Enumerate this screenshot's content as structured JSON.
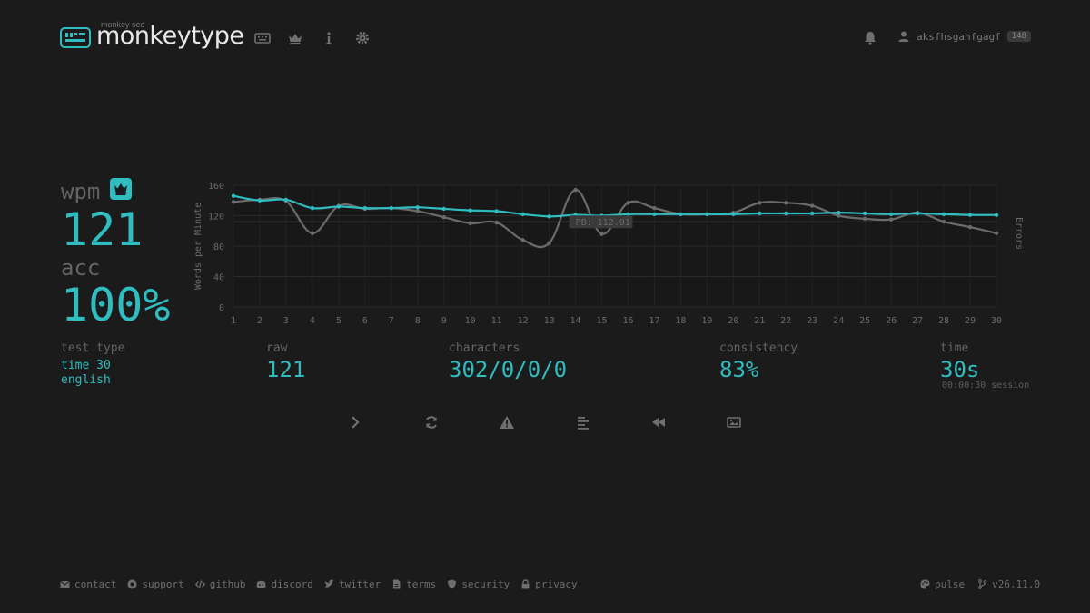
{
  "header": {
    "logo_small": "monkey see",
    "logo": "monkeytype",
    "nav_icons": [
      "keyboard-icon",
      "crown-icon",
      "info-icon",
      "gear-icon"
    ],
    "notifications_icon": "bell-icon",
    "username": "aksfhsgahfgagf",
    "level": "148"
  },
  "result": {
    "wpm_label": "wpm",
    "wpm": "121",
    "acc_label": "acc",
    "acc": "100%",
    "test_type_label": "test type",
    "test_type_mode": "time 30",
    "test_type_language": "english",
    "raw_label": "raw",
    "raw": "121",
    "characters_label": "characters",
    "characters": "302/0/0/0",
    "consistency_label": "consistency",
    "consistency": "83%",
    "time_label": "time",
    "time": "30s",
    "session": "00:00:30 session"
  },
  "chart_data": {
    "type": "line",
    "x": [
      1,
      2,
      3,
      4,
      5,
      6,
      7,
      8,
      9,
      10,
      11,
      12,
      13,
      14,
      15,
      16,
      17,
      18,
      19,
      20,
      21,
      22,
      23,
      24,
      25,
      26,
      27,
      28,
      29,
      30
    ],
    "series": [
      {
        "name": "wpm",
        "color": "#2fbdc0",
        "values": [
          146,
          140,
          141,
          130,
          132,
          130,
          130,
          131,
          129,
          127,
          126,
          122,
          119,
          121,
          120,
          122,
          122,
          122,
          122,
          122,
          123,
          123,
          123,
          124,
          123,
          122,
          123,
          122,
          121,
          121
        ]
      },
      {
        "name": "raw",
        "color": "#6b6b6b",
        "values": [
          138,
          141,
          139,
          97,
          133,
          129,
          130,
          126,
          118,
          110,
          111,
          88,
          84,
          154,
          96,
          137,
          130,
          122,
          122,
          124,
          137,
          137,
          133,
          120,
          116,
          115,
          124,
          112,
          105,
          97
        ]
      }
    ],
    "ylabel": "Words per Minute",
    "y2label": "Errors",
    "ylim": [
      0,
      160
    ],
    "yticks": [
      0,
      40,
      80,
      120,
      160
    ],
    "pb_value": 112.01,
    "pb_label": "PB: 112.01",
    "grid": true
  },
  "actions": [
    "next-test",
    "restart-test",
    "report",
    "words-history",
    "replay",
    "screenshot"
  ],
  "footer": {
    "links": [
      "contact",
      "support",
      "github",
      "discord",
      "twitter",
      "terms",
      "security",
      "privacy"
    ],
    "theme": "pulse",
    "version": "v26.11.0"
  },
  "colors": {
    "accent": "#2fbdc0",
    "background": "#1b1b1c",
    "text": "#e8e8e8",
    "sub": "#646465"
  }
}
